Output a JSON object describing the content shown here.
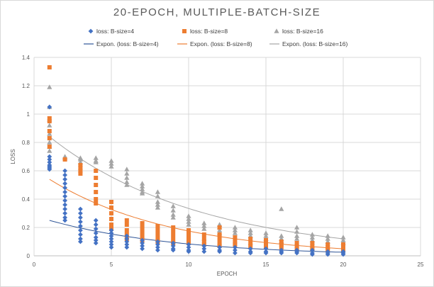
{
  "chart_data": {
    "type": "scatter",
    "title": "20-EPOCH,  MULTIPLE-BATCH-SIZE",
    "xlabel": "EPOCH",
    "ylabel": "LOSS",
    "xlim": [
      0,
      25
    ],
    "ylim": [
      0,
      1.4
    ],
    "x_ticks": [
      "0",
      "5",
      "10",
      "15",
      "20",
      "25"
    ],
    "y_ticks": [
      "0",
      "0.2",
      "0.4",
      "0.6",
      "0.8",
      "1",
      "1.2",
      "1.4"
    ],
    "grid": true,
    "legend_position": "top",
    "legend": [
      {
        "label": "loss: B-size=4",
        "kind": "marker",
        "marker": "diamond",
        "color": "#4472c4"
      },
      {
        "label": "loss: B-size=8",
        "kind": "marker",
        "marker": "square",
        "color": "#ed7d31"
      },
      {
        "label": "loss: B-size=16",
        "kind": "marker",
        "marker": "triangle",
        "color": "#a5a5a5"
      },
      {
        "label": "Expon. (loss: B-size=4)",
        "kind": "line",
        "color": "#2f5597"
      },
      {
        "label": "Expon. (loss: B-size=8)",
        "kind": "line",
        "color": "#ed7d31"
      },
      {
        "label": "Expon. (loss: B-size=16)",
        "kind": "line",
        "color": "#a5a5a5"
      }
    ],
    "series": [
      {
        "name": "loss: B-size=16",
        "marker": "triangle",
        "color": "#a5a5a5",
        "points": [
          [
            1,
            1.19
          ],
          [
            1,
            1.05
          ],
          [
            1,
            0.96
          ],
          [
            1,
            0.92
          ],
          [
            1,
            0.86
          ],
          [
            1,
            0.8
          ],
          [
            1,
            0.77
          ],
          [
            1,
            0.74
          ],
          [
            2,
            0.7
          ],
          [
            2,
            0.69
          ],
          [
            3,
            0.69
          ],
          [
            3,
            0.68
          ],
          [
            3,
            0.66
          ],
          [
            4,
            0.69
          ],
          [
            4,
            0.67
          ],
          [
            4,
            0.66
          ],
          [
            5,
            0.67
          ],
          [
            5,
            0.65
          ],
          [
            5,
            0.63
          ],
          [
            6,
            0.61
          ],
          [
            6,
            0.58
          ],
          [
            6,
            0.55
          ],
          [
            6,
            0.52
          ],
          [
            6,
            0.5
          ],
          [
            7,
            0.51
          ],
          [
            7,
            0.49
          ],
          [
            7,
            0.47
          ],
          [
            7,
            0.45
          ],
          [
            7,
            0.44
          ],
          [
            8,
            0.45
          ],
          [
            8,
            0.42
          ],
          [
            8,
            0.38
          ],
          [
            8,
            0.36
          ],
          [
            8,
            0.34
          ],
          [
            9,
            0.35
          ],
          [
            9,
            0.32
          ],
          [
            9,
            0.29
          ],
          [
            9,
            0.27
          ],
          [
            10,
            0.28
          ],
          [
            10,
            0.26
          ],
          [
            10,
            0.24
          ],
          [
            10,
            0.22
          ],
          [
            11,
            0.23
          ],
          [
            11,
            0.21
          ],
          [
            11,
            0.19
          ],
          [
            12,
            0.22
          ],
          [
            12,
            0.2
          ],
          [
            12,
            0.18
          ],
          [
            12,
            0.16
          ],
          [
            13,
            0.2
          ],
          [
            13,
            0.18
          ],
          [
            13,
            0.16
          ],
          [
            14,
            0.18
          ],
          [
            14,
            0.16
          ],
          [
            14,
            0.14
          ],
          [
            15,
            0.16
          ],
          [
            15,
            0.14
          ],
          [
            15,
            0.12
          ],
          [
            16,
            0.33
          ],
          [
            16,
            0.14
          ],
          [
            16,
            0.12
          ],
          [
            16,
            0.1
          ],
          [
            17,
            0.2
          ],
          [
            17,
            0.17
          ],
          [
            17,
            0.14
          ],
          [
            17,
            0.12
          ],
          [
            18,
            0.15
          ],
          [
            18,
            0.13
          ],
          [
            18,
            0.11
          ],
          [
            19,
            0.14
          ],
          [
            19,
            0.12
          ],
          [
            19,
            0.1
          ],
          [
            20,
            0.13
          ],
          [
            20,
            0.11
          ],
          [
            20,
            0.09
          ]
        ]
      },
      {
        "name": "loss: B-size=8",
        "marker": "square",
        "color": "#ed7d31",
        "points": [
          [
            1,
            1.33
          ],
          [
            1,
            0.97
          ],
          [
            1,
            0.95
          ],
          [
            1,
            0.88
          ],
          [
            1,
            0.83
          ],
          [
            1,
            0.77
          ],
          [
            2,
            0.68
          ],
          [
            3,
            0.64
          ],
          [
            3,
            0.62
          ],
          [
            3,
            0.6
          ],
          [
            3,
            0.58
          ],
          [
            4,
            0.6
          ],
          [
            4,
            0.55
          ],
          [
            4,
            0.5
          ],
          [
            4,
            0.45
          ],
          [
            4,
            0.4
          ],
          [
            4,
            0.37
          ],
          [
            5,
            0.38
          ],
          [
            5,
            0.34
          ],
          [
            5,
            0.3
          ],
          [
            5,
            0.26
          ],
          [
            5,
            0.22
          ],
          [
            5,
            0.19
          ],
          [
            6,
            0.25
          ],
          [
            6,
            0.22
          ],
          [
            6,
            0.18
          ],
          [
            6,
            0.15
          ],
          [
            6,
            0.12
          ],
          [
            7,
            0.23
          ],
          [
            7,
            0.2
          ],
          [
            7,
            0.17
          ],
          [
            7,
            0.14
          ],
          [
            7,
            0.11
          ],
          [
            8,
            0.21
          ],
          [
            8,
            0.18
          ],
          [
            8,
            0.15
          ],
          [
            8,
            0.12
          ],
          [
            8,
            0.1
          ],
          [
            9,
            0.2
          ],
          [
            9,
            0.17
          ],
          [
            9,
            0.14
          ],
          [
            9,
            0.11
          ],
          [
            9,
            0.09
          ],
          [
            10,
            0.18
          ],
          [
            10,
            0.15
          ],
          [
            10,
            0.12
          ],
          [
            10,
            0.09
          ],
          [
            11,
            0.15
          ],
          [
            11,
            0.12
          ],
          [
            11,
            0.1
          ],
          [
            11,
            0.08
          ],
          [
            12,
            0.2
          ],
          [
            12,
            0.15
          ],
          [
            12,
            0.12
          ],
          [
            12,
            0.09
          ],
          [
            12,
            0.07
          ],
          [
            13,
            0.13
          ],
          [
            13,
            0.1
          ],
          [
            13,
            0.08
          ],
          [
            14,
            0.12
          ],
          [
            14,
            0.09
          ],
          [
            14,
            0.07
          ],
          [
            15,
            0.11
          ],
          [
            15,
            0.08
          ],
          [
            15,
            0.06
          ],
          [
            16,
            0.1
          ],
          [
            16,
            0.08
          ],
          [
            16,
            0.06
          ],
          [
            17,
            0.09
          ],
          [
            17,
            0.07
          ],
          [
            17,
            0.05
          ],
          [
            18,
            0.09
          ],
          [
            18,
            0.07
          ],
          [
            18,
            0.05
          ],
          [
            19,
            0.08
          ],
          [
            19,
            0.06
          ],
          [
            19,
            0.04
          ],
          [
            20,
            0.08
          ],
          [
            20,
            0.06
          ],
          [
            20,
            0.04
          ]
        ]
      },
      {
        "name": "loss: B-size=4",
        "marker": "diamond",
        "color": "#4472c4",
        "points": [
          [
            1,
            1.05
          ],
          [
            1,
            0.7
          ],
          [
            1,
            0.68
          ],
          [
            1,
            0.66
          ],
          [
            1,
            0.64
          ],
          [
            1,
            0.63
          ],
          [
            1,
            0.62
          ],
          [
            1,
            0.61
          ],
          [
            2,
            0.6
          ],
          [
            2,
            0.57
          ],
          [
            2,
            0.54
          ],
          [
            2,
            0.51
          ],
          [
            2,
            0.48
          ],
          [
            2,
            0.45
          ],
          [
            2,
            0.42
          ],
          [
            2,
            0.39
          ],
          [
            2,
            0.36
          ],
          [
            2,
            0.33
          ],
          [
            2,
            0.3
          ],
          [
            2,
            0.27
          ],
          [
            2,
            0.25
          ],
          [
            3,
            0.33
          ],
          [
            3,
            0.3
          ],
          [
            3,
            0.27
          ],
          [
            3,
            0.24
          ],
          [
            3,
            0.21
          ],
          [
            3,
            0.18
          ],
          [
            3,
            0.15
          ],
          [
            3,
            0.12
          ],
          [
            3,
            0.1
          ],
          [
            4,
            0.25
          ],
          [
            4,
            0.22
          ],
          [
            4,
            0.19
          ],
          [
            4,
            0.16
          ],
          [
            4,
            0.13
          ],
          [
            4,
            0.11
          ],
          [
            4,
            0.09
          ],
          [
            5,
            0.18
          ],
          [
            5,
            0.16
          ],
          [
            5,
            0.14
          ],
          [
            5,
            0.12
          ],
          [
            5,
            0.1
          ],
          [
            5,
            0.08
          ],
          [
            5,
            0.06
          ],
          [
            6,
            0.14
          ],
          [
            6,
            0.12
          ],
          [
            6,
            0.1
          ],
          [
            6,
            0.08
          ],
          [
            6,
            0.06
          ],
          [
            7,
            0.11
          ],
          [
            7,
            0.09
          ],
          [
            7,
            0.07
          ],
          [
            7,
            0.05
          ],
          [
            8,
            0.1
          ],
          [
            8,
            0.08
          ],
          [
            8,
            0.06
          ],
          [
            8,
            0.04
          ],
          [
            9,
            0.09
          ],
          [
            9,
            0.07
          ],
          [
            9,
            0.05
          ],
          [
            9,
            0.04
          ],
          [
            10,
            0.08
          ],
          [
            10,
            0.06
          ],
          [
            10,
            0.04
          ],
          [
            10,
            0.03
          ],
          [
            11,
            0.07
          ],
          [
            11,
            0.05
          ],
          [
            11,
            0.03
          ],
          [
            12,
            0.06
          ],
          [
            12,
            0.04
          ],
          [
            12,
            0.03
          ],
          [
            13,
            0.06
          ],
          [
            13,
            0.04
          ],
          [
            13,
            0.02
          ],
          [
            14,
            0.05
          ],
          [
            14,
            0.03
          ],
          [
            14,
            0.02
          ],
          [
            15,
            0.05
          ],
          [
            15,
            0.03
          ],
          [
            15,
            0.02
          ],
          [
            16,
            0.04
          ],
          [
            16,
            0.03
          ],
          [
            16,
            0.02
          ],
          [
            17,
            0.04
          ],
          [
            17,
            0.03
          ],
          [
            17,
            0.02
          ],
          [
            18,
            0.04
          ],
          [
            18,
            0.02
          ],
          [
            18,
            0.01
          ],
          [
            19,
            0.03
          ],
          [
            19,
            0.02
          ],
          [
            19,
            0.01
          ],
          [
            20,
            0.03
          ],
          [
            20,
            0.02
          ],
          [
            20,
            0.01
          ]
        ]
      }
    ],
    "trendlines": [
      {
        "name": "Expon. (loss: B-size=4)",
        "type": "exponential",
        "color": "#2f5597",
        "points": [
          [
            1,
            0.25
          ],
          [
            5,
            0.15
          ],
          [
            10,
            0.08
          ],
          [
            15,
            0.04
          ],
          [
            20,
            0.025
          ]
        ]
      },
      {
        "name": "Expon. (loss: B-size=8)",
        "type": "exponential",
        "color": "#ed7d31",
        "points": [
          [
            1,
            0.54
          ],
          [
            5,
            0.29
          ],
          [
            10,
            0.15
          ],
          [
            15,
            0.09
          ],
          [
            20,
            0.05
          ]
        ]
      },
      {
        "name": "Expon. (loss: B-size=16)",
        "type": "exponential",
        "color": "#a5a5a5",
        "points": [
          [
            1,
            0.84
          ],
          [
            5,
            0.56
          ],
          [
            10,
            0.33
          ],
          [
            15,
            0.19
          ],
          [
            20,
            0.12
          ]
        ]
      }
    ]
  }
}
